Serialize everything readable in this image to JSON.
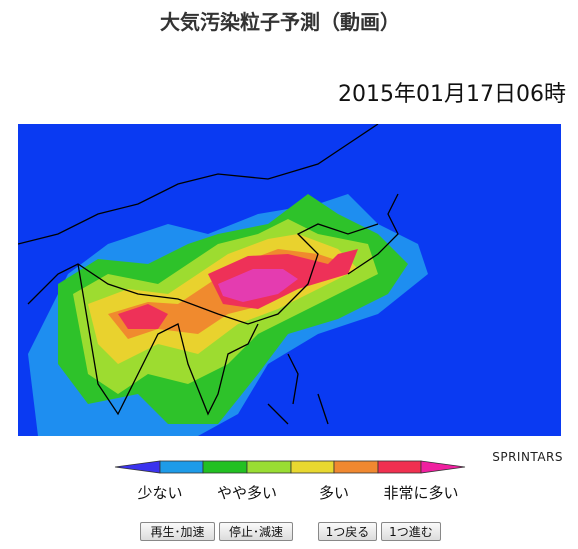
{
  "header": {
    "title": "大気汚染粒子予測（動画）",
    "timestamp": "2015年01月17日06時"
  },
  "map": {
    "credit": "SPRINTARS"
  },
  "legend": {
    "labels": [
      "少ない",
      "やや多い",
      "多い",
      "非常に多い"
    ]
  },
  "controls": {
    "buttons": [
      "再生･加速",
      "停止･減速",
      "1つ戻る",
      "1つ進む"
    ]
  }
}
